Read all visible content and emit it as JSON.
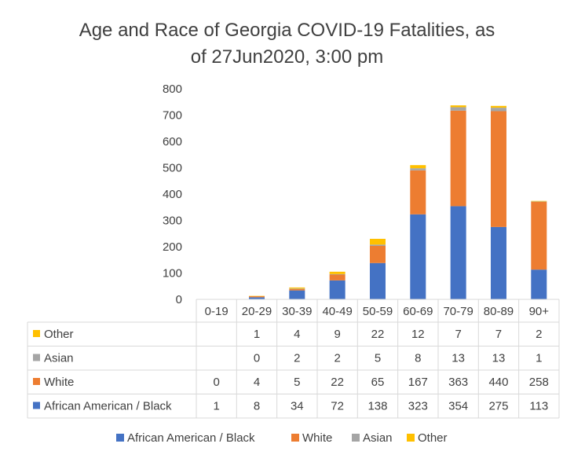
{
  "chart_data": {
    "type": "bar",
    "stacked": true,
    "title_line1": "Age and Race of Georgia COVID-19 Fatalities, as",
    "title_line2": "of 27Jun2020, 3:00 pm",
    "categories": [
      "0-19",
      "20-29",
      "30-39",
      "40-49",
      "50-59",
      "60-69",
      "70-79",
      "80-89",
      "90+"
    ],
    "series": [
      {
        "name": "African American / Black",
        "color": "#4472C4",
        "values": [
          1,
          8,
          34,
          72,
          138,
          323,
          354,
          275,
          113
        ]
      },
      {
        "name": "White",
        "color": "#ED7D31",
        "values": [
          0,
          4,
          5,
          22,
          65,
          167,
          363,
          440,
          258
        ]
      },
      {
        "name": "Asian",
        "color": "#A5A5A5",
        "values": [
          null,
          0,
          2,
          2,
          5,
          8,
          13,
          13,
          1
        ]
      },
      {
        "name": "Other",
        "color": "#FFC000",
        "values": [
          null,
          1,
          4,
          9,
          22,
          12,
          7,
          7,
          2
        ]
      }
    ],
    "table_rows_order": [
      "Other",
      "Asian",
      "White",
      "African American / Black"
    ],
    "yticks": [
      0,
      100,
      200,
      300,
      400,
      500,
      600,
      700,
      800
    ],
    "ylim": [
      0,
      800
    ],
    "legend_position": "bottom",
    "grid": false
  }
}
